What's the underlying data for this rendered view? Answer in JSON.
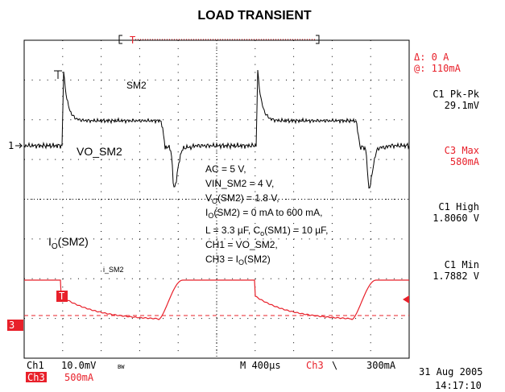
{
  "title": "LOAD TRANSIENT",
  "trigger_bracket": "T",
  "readouts": {
    "delta": "Δ: 0 A",
    "at": "@: 110mA",
    "c1_pkpk_label": "C1 Pk-Pk",
    "c1_pkpk_value": "29.1mV",
    "c3_max_label": "C3 Max",
    "c3_max_value": "580mA",
    "c1_high_label": "C1 High",
    "c1_high_value": "1.8060 V",
    "c1_min_label": "C1 Min",
    "c1_min_value": "1.7882 V"
  },
  "footer": {
    "ch1": "Ch1",
    "ch1_scale": "10.0mV",
    "bw": "BW",
    "ch3": "Ch3",
    "ch3_scale": "500mA",
    "timebase": "M 400µs",
    "trig_source": "Ch3",
    "trig_slope": "\\",
    "trig_level": "300mA",
    "date": "31 Aug 2005",
    "time": "14:17:10"
  },
  "markers": {
    "ch1": "1",
    "ch3": "3",
    "trigger": "T"
  },
  "labels": {
    "sm2": "SM2",
    "vo": "VO_SM2",
    "io_main": "I",
    "io_sub": "O",
    "io_rest": "(SM2)",
    "i_sm2": "i_SM2"
  },
  "conditions": {
    "l1": "AC = 5 V,",
    "l2": "VIN_SM2 = 4 V,",
    "l3": [
      "V",
      "O",
      "(SM2) = 1.8 V,"
    ],
    "l4": [
      "I",
      "O",
      "(SM2) = 0 mA to 600 mA,"
    ],
    "l5": [
      "L = 3.3 µF, C",
      "o",
      "(SM1) = 10 µF,"
    ],
    "l6": "CH1 = VO_SM2,",
    "l7": [
      "CH3 = I",
      "O",
      "(SM2)"
    ]
  }
}
